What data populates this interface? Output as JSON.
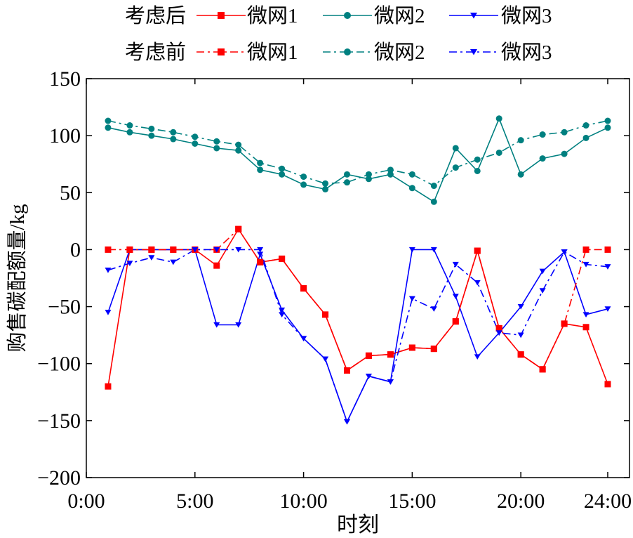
{
  "chart_data": {
    "type": "line",
    "xlabel": "时刻",
    "ylabel": "购售碳配额量/kg",
    "xlim": [
      0,
      24
    ],
    "ylim": [
      -200,
      150
    ],
    "x_ticks": [
      {
        "value": 0,
        "label": "0:00"
      },
      {
        "value": 5,
        "label": "5:00"
      },
      {
        "value": 10,
        "label": "10:00"
      },
      {
        "value": 15,
        "label": "15:00"
      },
      {
        "value": 20,
        "label": "20:00"
      },
      {
        "value": 24,
        "label": "24:00"
      }
    ],
    "y_ticks": [
      -200,
      -150,
      -100,
      -50,
      0,
      50,
      100,
      150
    ],
    "grid": false,
    "legend_position": "top",
    "legend_groups": [
      {
        "label": "考虑后",
        "series_indices": [
          0,
          1,
          2
        ]
      },
      {
        "label": "考虑前",
        "series_indices": [
          3,
          4,
          5
        ]
      }
    ],
    "x": [
      1,
      2,
      3,
      4,
      5,
      6,
      7,
      8,
      9,
      10,
      11,
      12,
      13,
      14,
      15,
      16,
      17,
      18,
      19,
      20,
      21,
      22,
      23,
      24
    ],
    "series": [
      {
        "name": "微网1",
        "group": "考虑后",
        "color": "#ff0000",
        "marker": "square",
        "dash": "solid",
        "values": [
          -120,
          0,
          0,
          0,
          0,
          -14,
          18,
          -11,
          -8,
          -34,
          -57,
          -106,
          -93,
          -92,
          -86,
          -87,
          -63,
          -1,
          -69,
          -92,
          -105,
          -65,
          -68,
          -118
        ]
      },
      {
        "name": "微网2",
        "group": "考虑后",
        "color": "#008080",
        "marker": "circle",
        "dash": "solid",
        "values": [
          107,
          103,
          100,
          97,
          93,
          89,
          87,
          70,
          66,
          57,
          53,
          66,
          62,
          66,
          54,
          42,
          89,
          69,
          115,
          66,
          80,
          84,
          98,
          107
        ]
      },
      {
        "name": "微网3",
        "group": "考虑后",
        "color": "#0000ff",
        "marker": "triangle-down",
        "dash": "solid",
        "values": [
          -55,
          0,
          0,
          0,
          0,
          -66,
          -66,
          -4,
          -53,
          -78,
          -96,
          -151,
          -111,
          -116,
          0,
          0,
          -41,
          -94,
          -73,
          -50,
          -19,
          -2,
          -57,
          -52
        ]
      },
      {
        "name": "微网1",
        "group": "考虑前",
        "color": "#ff0000",
        "marker": "square",
        "dash": "dashdot",
        "values": [
          0,
          0,
          0,
          0,
          0,
          0,
          18,
          -11,
          -8,
          -34,
          -57,
          -106,
          -93,
          -92,
          -86,
          -87,
          -63,
          -1,
          -69,
          -92,
          -105,
          -65,
          0,
          0
        ]
      },
      {
        "name": "微网2",
        "group": "考虑前",
        "color": "#008080",
        "marker": "circle",
        "dash": "dashdot",
        "values": [
          113,
          109,
          106,
          103,
          99,
          95,
          92,
          76,
          71,
          64,
          58,
          59,
          66,
          70,
          66,
          56,
          72,
          79,
          85,
          96,
          101,
          103,
          109,
          113
        ]
      },
      {
        "name": "微网3",
        "group": "考虑前",
        "color": "#0000ff",
        "marker": "triangle-down",
        "dash": "dashdot",
        "values": [
          -18,
          -12,
          -7,
          -11,
          0,
          0,
          0,
          0,
          -57,
          -78,
          -96,
          -151,
          -111,
          -116,
          -43,
          -52,
          -13,
          -29,
          -73,
          -75,
          -36,
          -2,
          -13,
          -15
        ]
      }
    ]
  }
}
